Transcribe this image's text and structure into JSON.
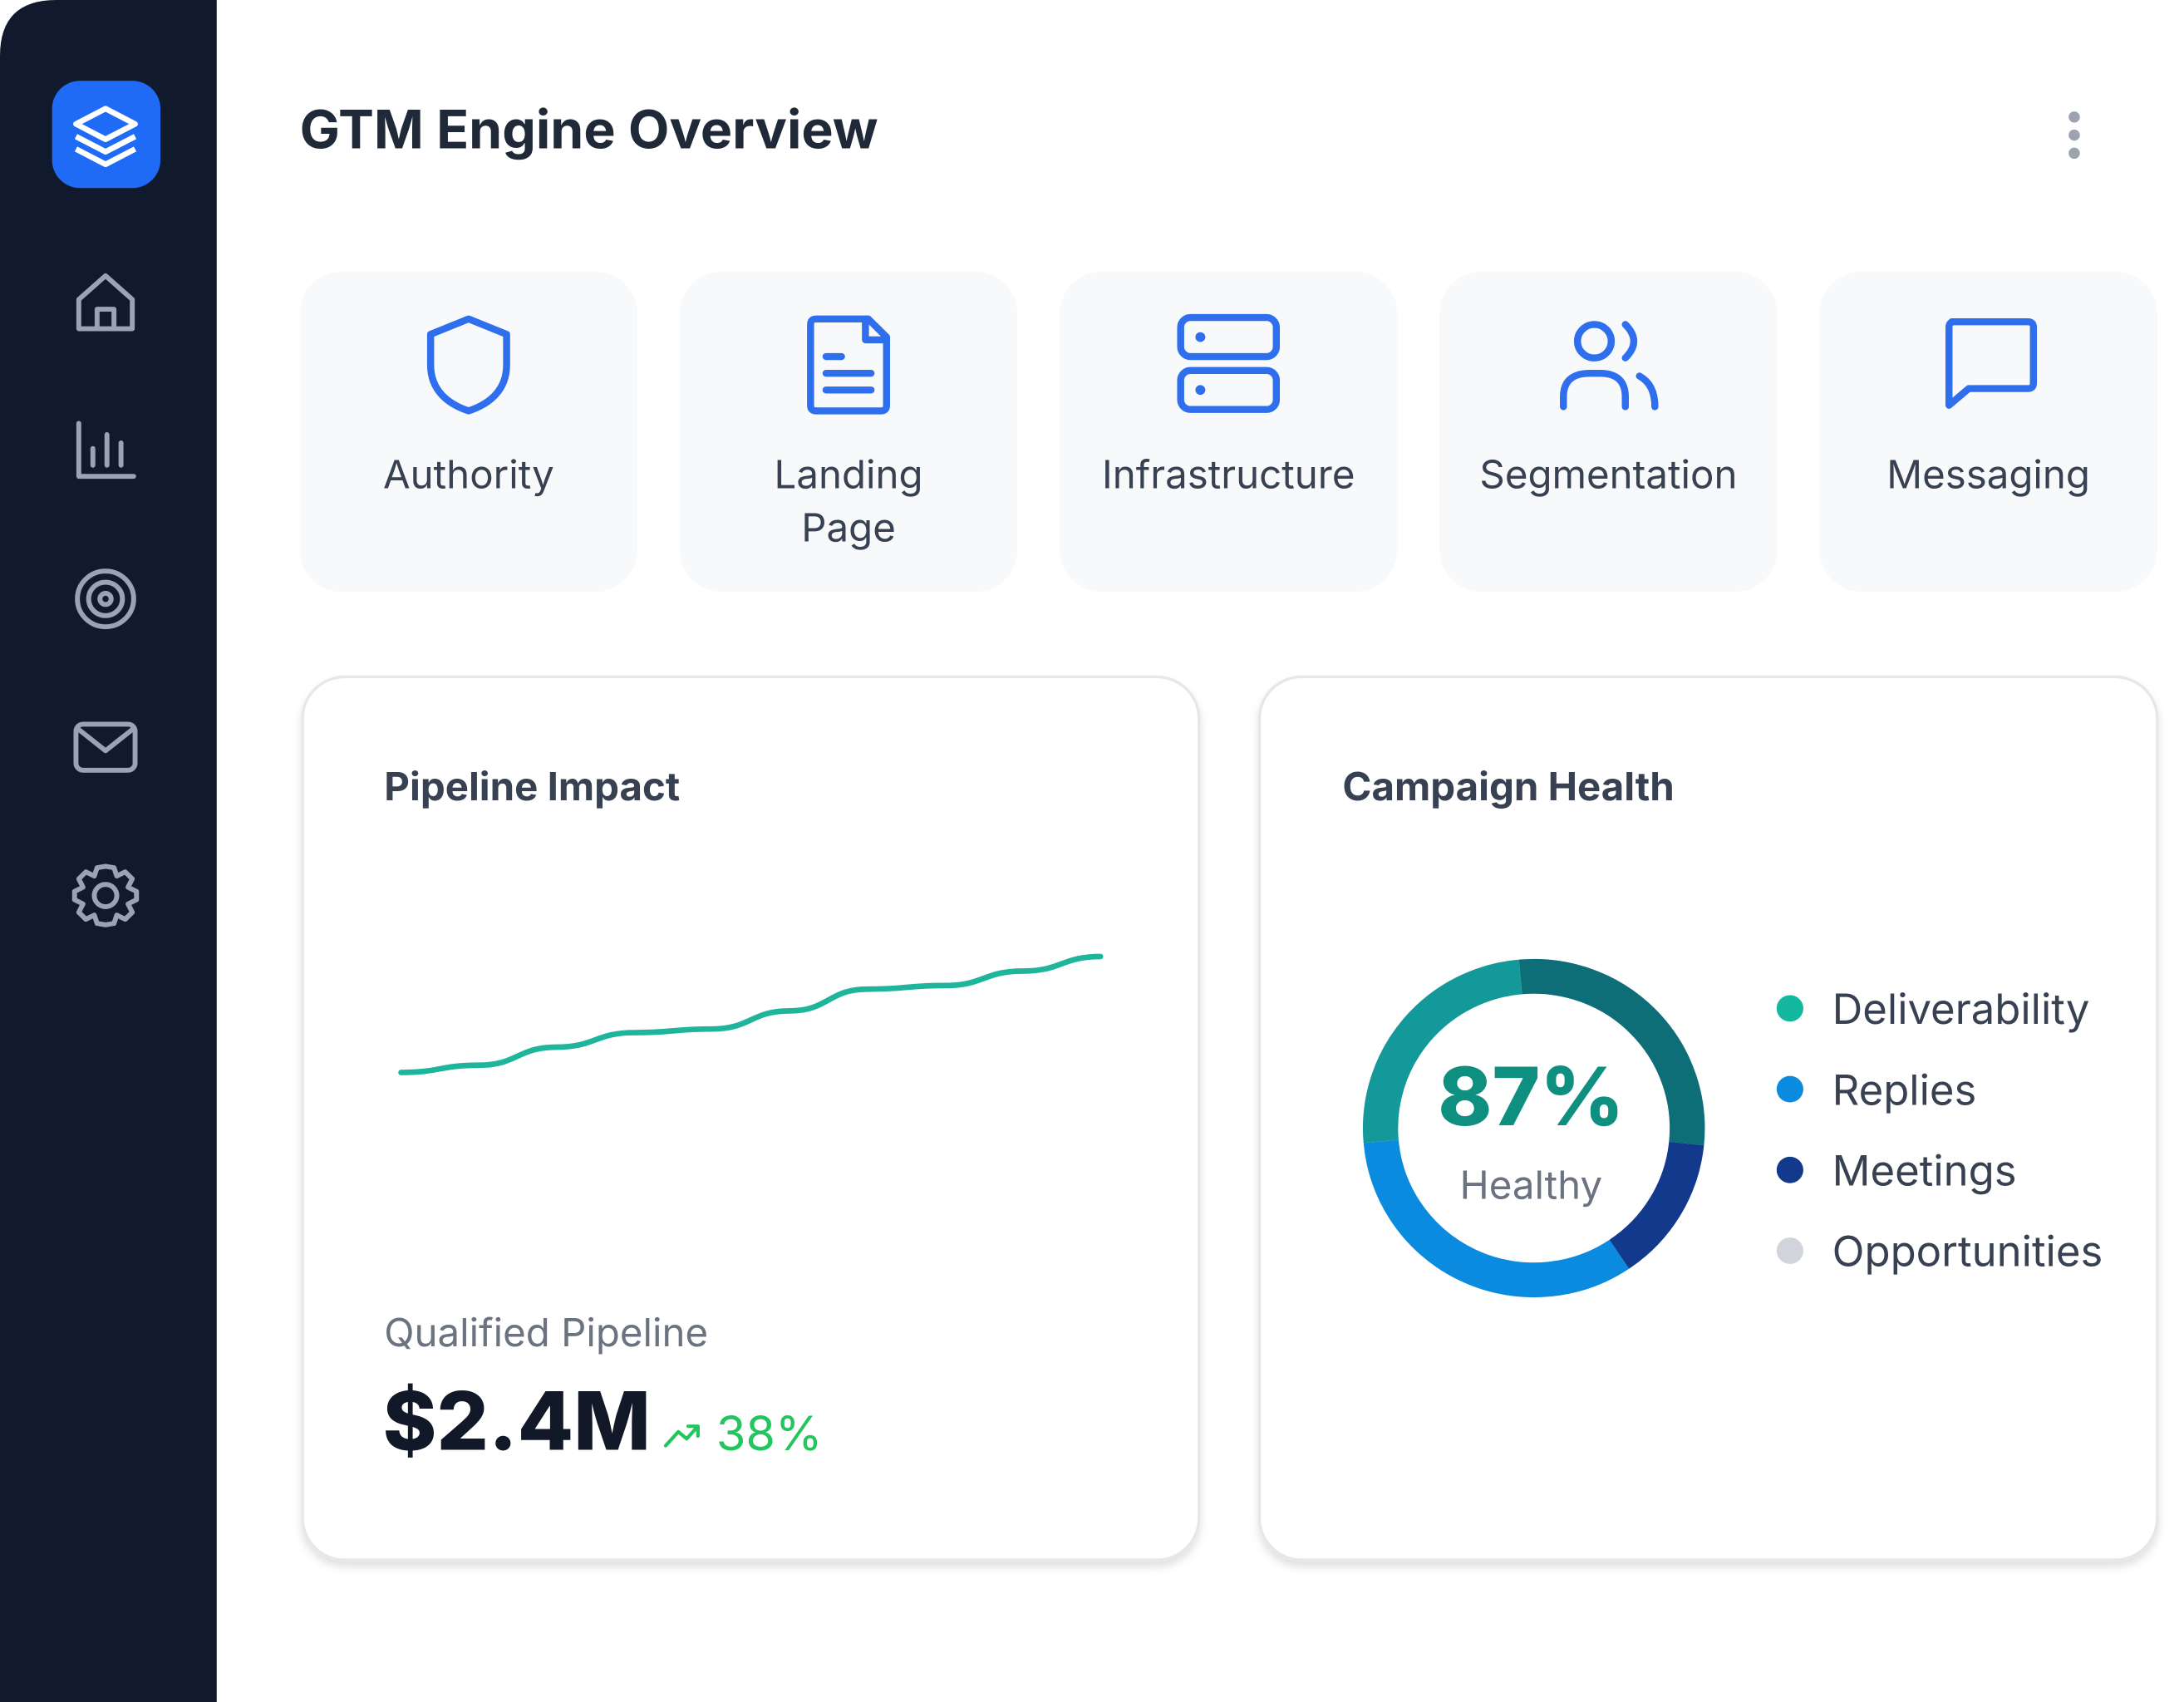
{
  "header": {
    "title": "GTM Engine Overview"
  },
  "cards": [
    {
      "lines": [
        "Authority"
      ]
    },
    {
      "lines": [
        "Landing",
        "Page"
      ]
    },
    {
      "lines": [
        "Infrastructure"
      ]
    },
    {
      "lines": [
        "Segmentation"
      ]
    },
    {
      "lines": [
        "Messaging"
      ]
    }
  ],
  "pipeline": {
    "metric_label": "Qualified Pipeline",
    "metric_value": "$2.4M",
    "change": "38%"
  },
  "chart_data": [
    {
      "type": "line",
      "title": "Pipeline Impact",
      "color": "#1fb59c",
      "values": [
        50,
        52,
        57,
        61,
        62,
        67,
        73,
        74,
        78,
        82
      ],
      "ylim": [
        0,
        100
      ]
    },
    {
      "type": "donut",
      "title": "Campaign Health",
      "center_label": "87%",
      "center_sublabel": "Healthy",
      "segments": [
        {
          "color": "#0e6e78",
          "values": [
            28
          ]
        },
        {
          "color": "#12398c",
          "values": [
            14
          ]
        },
        {
          "color": "#0b8be0",
          "values": [
            33
          ]
        },
        {
          "color": "#14999a",
          "values": [
            25
          ]
        }
      ],
      "legend": [
        {
          "name": "Deliverability",
          "color": "#13b89f"
        },
        {
          "name": "Replies",
          "color": "#0b8be0"
        },
        {
          "name": "Meetings",
          "color": "#12398c"
        },
        {
          "name": "Opportunities",
          "color": "#d1d5db"
        }
      ]
    }
  ]
}
